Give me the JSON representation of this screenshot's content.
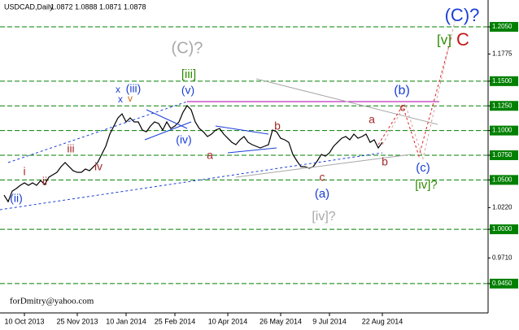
{
  "chart_data": {
    "type": "line",
    "header": {
      "symbol": "USDCAD,Daily",
      "open": 1.0872,
      "high": 1.0888,
      "low": 1.0871,
      "close": 1.0878
    },
    "watermark": "forDmitry@yahoo.com",
    "color": "#000000",
    "values": [
      1.0346,
      1.028,
      1.0387,
      1.0412,
      1.0445,
      1.047,
      1.0445,
      1.047,
      1.0445,
      1.0494,
      1.0453,
      1.0527,
      1.0552,
      1.0577,
      1.0634,
      1.0676,
      1.0634,
      1.0593,
      1.0577,
      1.0577,
      1.061,
      1.0593,
      1.0634,
      1.0676,
      1.0758,
      1.084,
      1.0964,
      1.1046,
      1.1128,
      1.1169,
      1.1087,
      1.1128,
      1.1087,
      1.1087,
      1.1005,
      1.0988,
      1.1046,
      1.1087,
      1.1071,
      1.1005,
      1.1087,
      1.1021,
      1.1046,
      1.1087,
      1.1186,
      1.1252,
      1.121,
      1.1087,
      1.1021,
      1.0988,
      1.0939,
      1.0964,
      1.1005,
      1.1021,
      1.0964,
      1.0922,
      1.0881,
      1.0857,
      1.0906,
      1.0939,
      1.0881,
      1.0857,
      1.084,
      1.0824,
      1.084,
      1.0857,
      1.1005,
      1.0988,
      1.0922,
      1.0906,
      1.0881,
      1.0758,
      1.0692,
      1.0634,
      1.0634,
      1.0618,
      1.0634,
      1.0692,
      1.0758,
      1.0741,
      1.0774,
      1.084,
      1.0881,
      1.0922,
      1.0939,
      1.0906,
      1.0964,
      1.0922,
      1.0939,
      1.0964,
      1.0881,
      1.0906,
      1.0824,
      1.0881
    ],
    "xticks": [
      {
        "value": 5,
        "label": "10 Oct 2013"
      },
      {
        "value": 18,
        "label": "25 Nov 2013"
      },
      {
        "value": 30,
        "label": "10 Jan 2014"
      },
      {
        "value": 42,
        "label": "25 Feb 2014"
      },
      {
        "value": 55,
        "label": "10 Apr 2014"
      },
      {
        "value": 68,
        "label": "26 May 2014"
      },
      {
        "value": 80,
        "label": "9 Jul 2014"
      },
      {
        "value": 93,
        "label": "22 Aug 2014"
      }
    ],
    "ylim": [
      0.9153,
      1.2322
    ],
    "yticks": [
      {
        "value": 1.205,
        "label": "1.2050"
      },
      1.1775,
      {
        "value": 1.15,
        "label": "1.1500"
      },
      {
        "value": 1.125,
        "label": "1.1250"
      },
      {
        "value": 1.1,
        "label": "1.1000"
      },
      {
        "value": 1.075,
        "label": "1.0750"
      },
      {
        "value": 1.05,
        "label": "1.0500"
      },
      {
        "value": 1.022,
        "label": "1.0220"
      },
      {
        "value": 1,
        "label": "1.0000"
      },
      {
        "value": 0.971,
        "label": "0.9710"
      },
      {
        "value": 0.945,
        "label": "0.9450"
      }
    ],
    "levels": [
      1.205,
      1.15,
      1.125,
      1.1,
      1.075,
      1.05,
      1,
      0.945
    ],
    "level_color": "#008000",
    "annotations": [
      {
        "text": "(C)?",
        "color": "#1a3fd6"
      },
      {
        "text": "[v]",
        "color": "#2e8b00"
      },
      {
        "text": "C",
        "color": "#c0181b"
      },
      {
        "text": "(C)?",
        "color": "#a8a8a8"
      },
      {
        "text": "[iii]",
        "color": "#2e8b00"
      },
      {
        "text": "x",
        "color": "#1a3fd6"
      },
      {
        "text": "(iii)",
        "color": "#1a3fd6"
      },
      {
        "text": "x",
        "color": "#1a3fd6"
      },
      {
        "text": "v",
        "color": "#d2691e"
      },
      {
        "text": "(v)",
        "color": "#1a3fd6"
      },
      {
        "text": "(b)",
        "color": "#1a3fd6"
      },
      {
        "text": "c",
        "color": "#a52a2a"
      },
      {
        "text": "a",
        "color": "#a52a2a"
      },
      {
        "text": "b",
        "color": "#a52a2a"
      },
      {
        "text": "(iv)",
        "color": "#1a3fd6"
      },
      {
        "text": "a",
        "color": "#a52a2a"
      },
      {
        "text": "iii",
        "color": "#a52a2a"
      },
      {
        "text": "i",
        "color": "#a52a2a"
      },
      {
        "text": "iv",
        "color": "#a52a2a"
      },
      {
        "text": "ii",
        "color": "#a52a2a"
      },
      {
        "text": "(ii)",
        "color": "#1a3fd6"
      },
      {
        "text": "c",
        "color": "#a52a2a"
      },
      {
        "text": "b",
        "color": "#a52a2a"
      },
      {
        "text": "(c)",
        "color": "#1a3fd6"
      },
      {
        "text": "[iv]?",
        "color": "#2e8b00"
      },
      {
        "text": "(a)",
        "color": "#1a3fd6"
      },
      {
        "text": "[iv]?",
        "color": "#a8a8a8"
      }
    ]
  }
}
